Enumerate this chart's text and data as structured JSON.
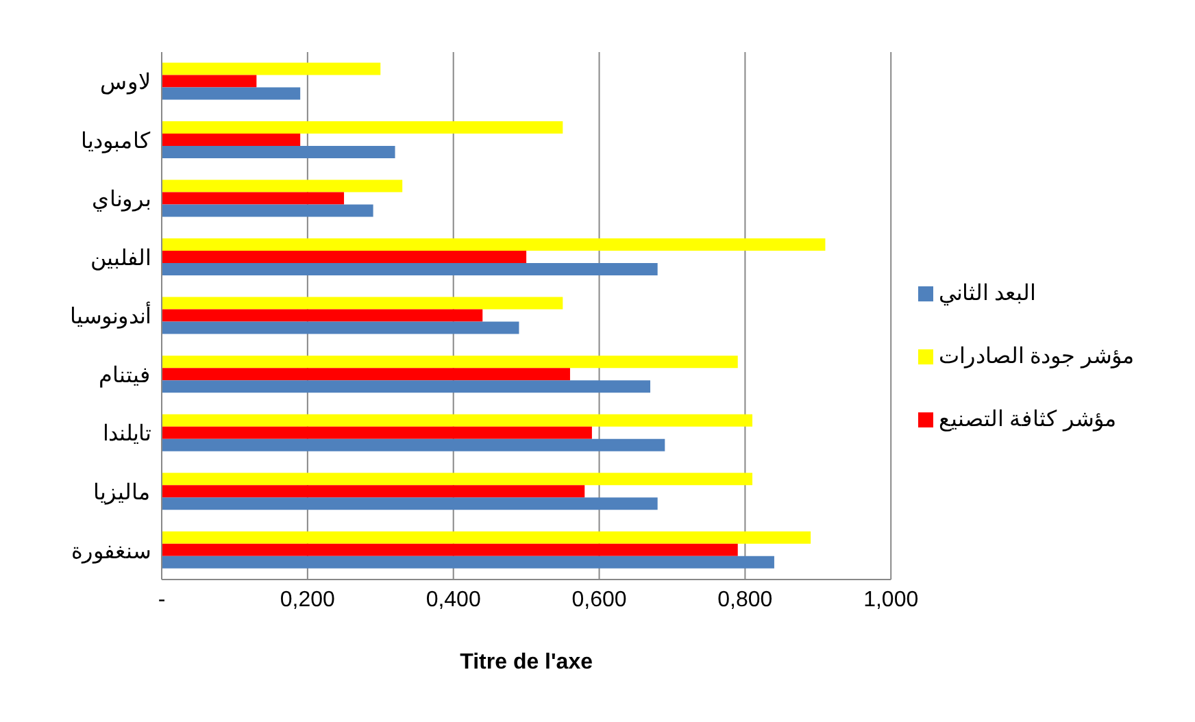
{
  "chart_data": {
    "type": "bar",
    "orientation": "horizontal",
    "xlabel": "Titre de l'axe",
    "categories": [
      "لاوس",
      "كامبوديا",
      "بروناي",
      "الفلبين",
      "أندونوسيا",
      "فيتنام",
      "تايلندا",
      "ماليزيا",
      "سنغفورة"
    ],
    "series": [
      {
        "name": "مؤشر جودة الصادرات",
        "color": "#ffff00",
        "values": [
          0.3,
          0.55,
          0.33,
          0.91,
          0.55,
          0.79,
          0.81,
          0.81,
          0.89
        ]
      },
      {
        "name": "مؤشر كثافة التصنيع",
        "color": "#ff0000",
        "values": [
          0.13,
          0.19,
          0.25,
          0.5,
          0.44,
          0.56,
          0.59,
          0.58,
          0.79
        ]
      },
      {
        "name": "البعد الثاني",
        "color": "#4f81bd",
        "values": [
          0.19,
          0.32,
          0.29,
          0.68,
          0.49,
          0.67,
          0.69,
          0.68,
          0.84
        ]
      }
    ],
    "xlim": [
      0,
      1
    ],
    "xticks": [
      {
        "value": 0,
        "label": "-"
      },
      {
        "value": 0.2,
        "label": "0,200"
      },
      {
        "value": 0.4,
        "label": "0,400"
      },
      {
        "value": 0.6,
        "label": "0,600"
      },
      {
        "value": 0.8,
        "label": "0,800"
      },
      {
        "value": 1,
        "label": "1,000"
      }
    ],
    "grid": "x",
    "legend": "right"
  }
}
